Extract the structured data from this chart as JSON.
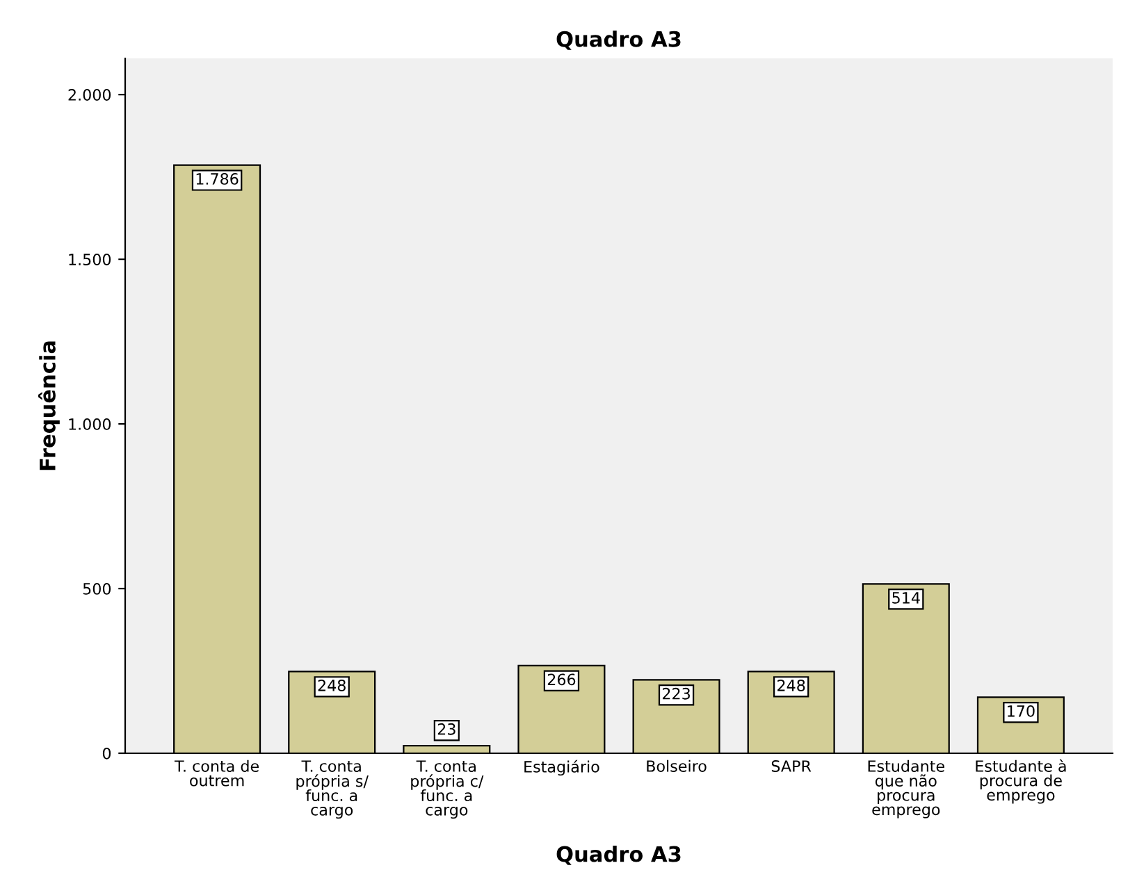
{
  "chart_data": {
    "type": "bar",
    "title": "Quadro A3",
    "xlabel": "Quadro A3",
    "ylabel": "Frequência",
    "categories": [
      "T. conta de\noutrem",
      "T. conta\nprópria s/\nfunc. a\ncargo",
      "T. conta\nprópria c/\nfunc. a\ncargo",
      "Estagiário",
      "Bolseiro",
      "SAPR",
      "Estudante\nque não\nprocura\nemprego",
      "Estudante à\nprocura de\nemprego"
    ],
    "values": [
      1786,
      248,
      23,
      266,
      223,
      248,
      514,
      170
    ],
    "value_labels": [
      "1.786",
      "248",
      "23",
      "266",
      "223",
      "248",
      "514",
      "170"
    ],
    "color": "#d3ce97",
    "ylim": [
      0,
      2110
    ],
    "yticks": [
      0,
      500,
      {
        "value": 1000,
        "label": "1.000"
      },
      {
        "value": 1500,
        "label": "1.500"
      },
      {
        "value": 2000,
        "label": "2.000"
      }
    ],
    "grid": false,
    "legend": false
  }
}
